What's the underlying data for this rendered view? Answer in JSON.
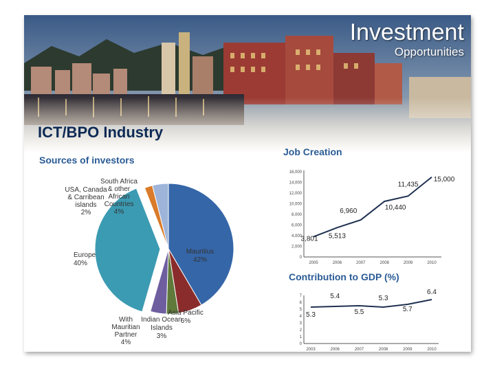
{
  "slide": {
    "title": "Investment",
    "subtitle": "Opportunities",
    "heading": "ICT/BPO Industry"
  },
  "colors": {
    "heading": "#0d2a55",
    "section_title": "#2a5b95"
  },
  "chart_data": [
    {
      "type": "pie",
      "title": "Sources of investors",
      "slices": [
        {
          "name": "Mauritius",
          "value": 42,
          "label": "Mauritius 42%",
          "color": "#3566a8"
        },
        {
          "name": "Asia Pacific",
          "value": 6,
          "label": "Asia Pacific 6%",
          "color": "#8b2c2c"
        },
        {
          "name": "Indian Ocean Islands",
          "value": 3,
          "label": "Indian Ocean Islands 3%",
          "color": "#5f7a3a"
        },
        {
          "name": "With Mauritian Partner",
          "value": 4,
          "label": "With Mauritian Partner 4%",
          "color": "#6e5ea0"
        },
        {
          "name": "Europe",
          "value": 40,
          "label": "Europe 40%",
          "color": "#3b9bb2"
        },
        {
          "name": "USA, Canada & Carribean islands",
          "value": 2,
          "label": "USA, Canada & Carribean islands 2%",
          "color": "#d97b2a"
        },
        {
          "name": "South Africa & other African Countries",
          "value": 4,
          "label": "South Africa & other African Countries 4%",
          "color": "#9fb4d9"
        }
      ]
    },
    {
      "type": "line",
      "title": "Job Creation",
      "x": [
        "2005",
        "2006",
        "2007",
        "2008",
        "2009",
        "2010"
      ],
      "values": [
        3801,
        5513,
        6960,
        10440,
        11435,
        15000
      ],
      "labels": [
        "3,801",
        "5,513",
        "6,960",
        "10,440",
        "11,435",
        "15,000"
      ],
      "ylim": [
        0,
        16000
      ],
      "yticks": [
        "0",
        "2,000",
        "4,000",
        "6,000",
        "8,000",
        "10,000",
        "12,000",
        "14,000",
        "16,000"
      ],
      "grid": false
    },
    {
      "type": "line",
      "title": "Contribution to GDP (%)",
      "x": [
        "2003",
        "2006",
        "2007",
        "2008",
        "2009",
        "2010"
      ],
      "values": [
        5.3,
        5.4,
        5.5,
        5.3,
        5.7,
        6.4
      ],
      "labels": [
        "5.3",
        "5.4",
        "5.5",
        "5.3",
        "5.7",
        "6.4"
      ],
      "ylim": [
        0,
        7
      ],
      "yticks": [
        "0",
        "1",
        "2",
        "3",
        "4",
        "5",
        "6",
        "7"
      ],
      "grid": false
    }
  ]
}
